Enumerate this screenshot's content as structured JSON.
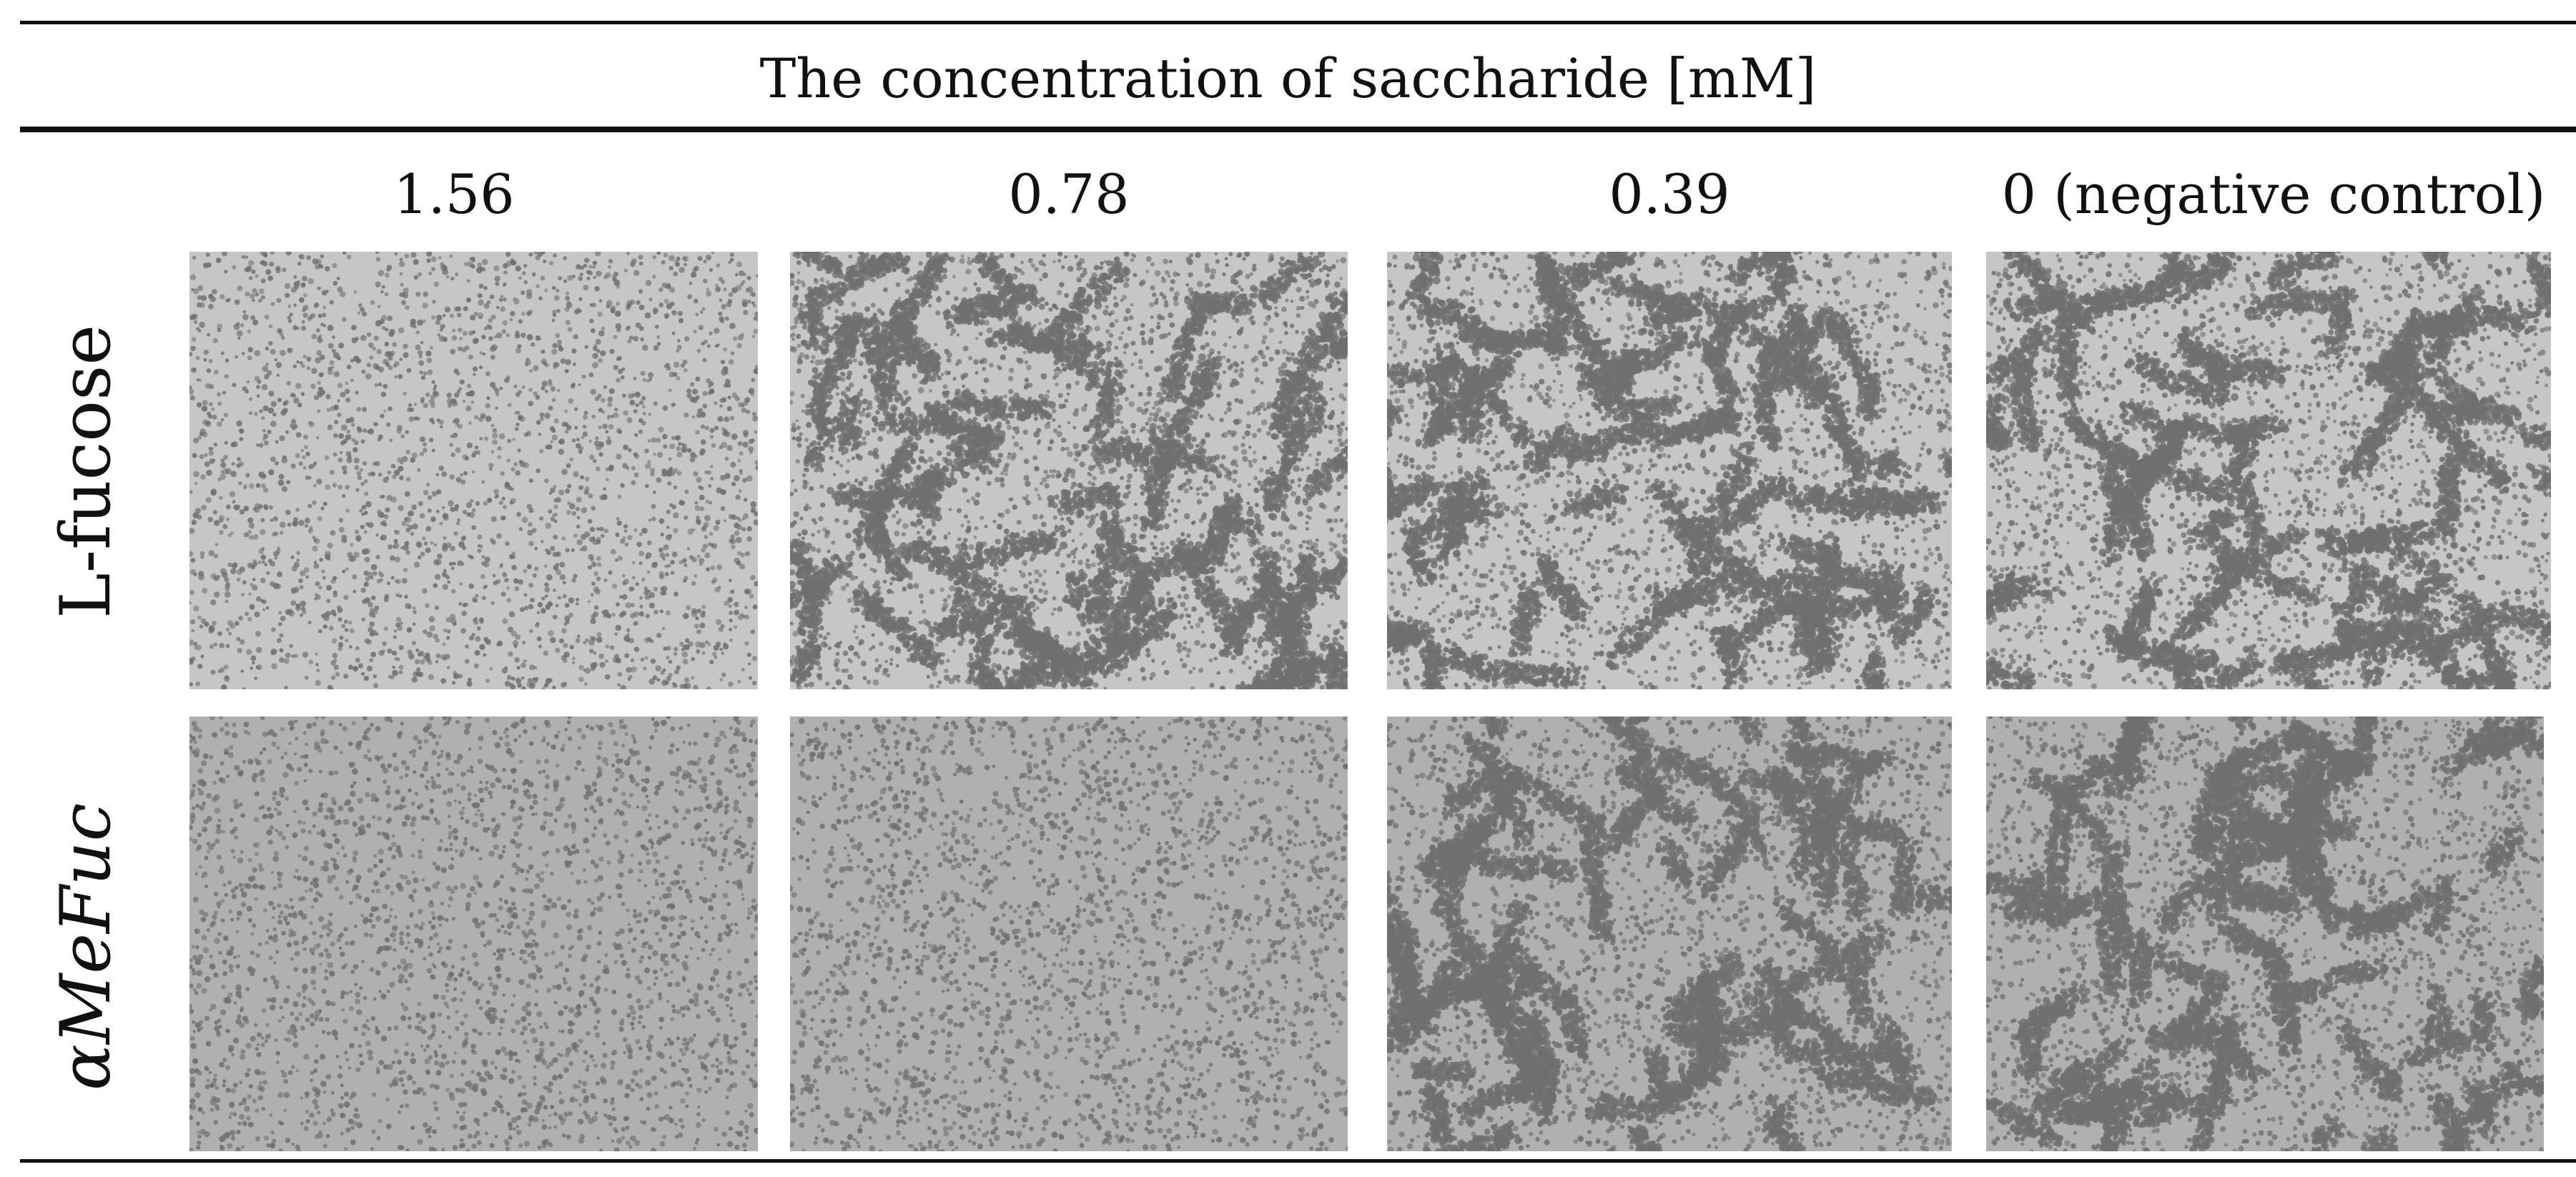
{
  "table": {
    "header_title": "The concentration of  saccharide [mM]",
    "columns": [
      {
        "label": "1.56"
      },
      {
        "label": "0.78"
      },
      {
        "label": "0.39"
      },
      {
        "label": "0 (negative control)"
      }
    ],
    "rows": [
      {
        "label": "L-fucose"
      },
      {
        "label": "αMeFuc"
      }
    ]
  },
  "colors": {
    "rule": "#111111",
    "panel_background_row1": "#c6c6c6",
    "panel_background_row2": "#b0b0b0",
    "cell_dots": "#6f6f6f"
  },
  "panels": [
    {
      "row": 0,
      "col": 0,
      "cell_density": "dense",
      "aggregation": "none"
    },
    {
      "row": 0,
      "col": 1,
      "cell_density": "dense",
      "aggregation": "strong"
    },
    {
      "row": 0,
      "col": 2,
      "cell_density": "dense",
      "aggregation": "strong"
    },
    {
      "row": 0,
      "col": 3,
      "cell_density": "dense",
      "aggregation": "strong"
    },
    {
      "row": 1,
      "col": 0,
      "cell_density": "dense",
      "aggregation": "none"
    },
    {
      "row": 1,
      "col": 1,
      "cell_density": "dense",
      "aggregation": "none"
    },
    {
      "row": 1,
      "col": 2,
      "cell_density": "dense",
      "aggregation": "strong"
    },
    {
      "row": 1,
      "col": 3,
      "cell_density": "dense",
      "aggregation": "strong"
    }
  ]
}
